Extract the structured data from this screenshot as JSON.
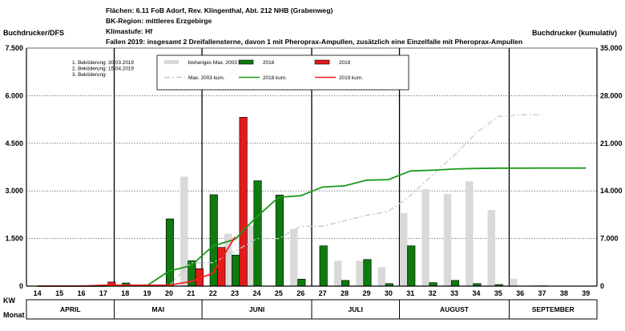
{
  "header": {
    "line1": "Flächen: 6.11 FoB Adorf, Rev. Klingenthal, Abt. 212 NHB (Grabenweg)",
    "line2": "BK-Region: mittleres Erzgebirge",
    "line3": "Klimastufe: Hf",
    "line4": "Fallen 2019: insgesamt 2 Dreifallensterne, davon 1 mit Pheroprax-Ampullen, zusätzlich eine Einzelfalle mit Pheroprax-Ampullen"
  },
  "treatment_notes": [
    {
      "label": "1. Beköderung:",
      "value": "30.03.2019"
    },
    {
      "label": "2. Beköderung:",
      "value": "15.04.2019"
    },
    {
      "label": "3. Beköderung:",
      "value": ""
    }
  ],
  "colors": {
    "max2003": "#d9d9d9",
    "y2018": "#0f7a0f",
    "y2019": "#e31b1b",
    "max2003_line": "#c8c8c8",
    "y2018_line": "#1a9a1a",
    "y2019_line": "#ff1a1a"
  },
  "chart_data": {
    "type": "bar",
    "ylabel_left": "Buchdrucker/DFS",
    "ylabel_right": "Buchdrucker (kumulativ)",
    "ylim_left": [
      0,
      7500
    ],
    "ylim_right": [
      0,
      35000
    ],
    "yticks_left": [
      "0",
      "1.500",
      "3.000",
      "4.500",
      "6.000",
      "7.500"
    ],
    "yticks_right": [
      "0",
      "7.000",
      "14.000",
      "21.000",
      "28.000",
      "35.000"
    ],
    "x_row_label": "KW",
    "month_row_label": "Monat",
    "categories": [
      "14",
      "15",
      "16",
      "17",
      "18",
      "19",
      "20",
      "21",
      "22",
      "23",
      "24",
      "25",
      "26",
      "27",
      "28",
      "29",
      "30",
      "31",
      "32",
      "33",
      "34",
      "35",
      "36",
      "37",
      "38",
      "39"
    ],
    "months": [
      {
        "name": "APRIL",
        "weeks": [
          "14",
          "15",
          "16",
          "17"
        ]
      },
      {
        "name": "MAI",
        "weeks": [
          "18",
          "19",
          "20",
          "21"
        ]
      },
      {
        "name": "JUNI",
        "weeks": [
          "22",
          "23",
          "24",
          "25",
          "26"
        ]
      },
      {
        "name": "JULI",
        "weeks": [
          "27",
          "28",
          "29",
          "30"
        ]
      },
      {
        "name": "AUGUST",
        "weeks": [
          "31",
          "32",
          "33",
          "34",
          "35"
        ]
      },
      {
        "name": "SEPTEMBER",
        "weeks": [
          "36",
          "37",
          "38",
          "39"
        ]
      }
    ],
    "legend": [
      {
        "label": "bisheriges Max. 2003",
        "kind": "bar",
        "series": "max2003"
      },
      {
        "label": "2018",
        "kind": "bar",
        "series": "y2018"
      },
      {
        "label": "2019",
        "kind": "bar",
        "series": "y2019"
      },
      {
        "label": "Max. 2003 kum.",
        "kind": "line",
        "series": "max2003"
      },
      {
        "label": "2018 kum.",
        "kind": "line",
        "series": "y2018"
      },
      {
        "label": "2019 kum.",
        "kind": "line",
        "series": "y2019"
      }
    ],
    "bars": {
      "max2003": [
        0,
        0,
        0,
        0,
        0,
        0,
        0,
        3450,
        0,
        1650,
        1900,
        0,
        1800,
        0,
        800,
        800,
        600,
        2300,
        3050,
        2900,
        3300,
        2400,
        230,
        30,
        0,
        0
      ],
      "y2018": [
        0,
        0,
        0,
        0,
        100,
        0,
        2120,
        800,
        2880,
        980,
        3320,
        2870,
        220,
        1270,
        180,
        840,
        80,
        1270,
        110,
        180,
        80,
        50,
        0,
        10,
        0,
        0
      ],
      "y2019": [
        0,
        0,
        0,
        130,
        0,
        0,
        0,
        550,
        1220,
        5320,
        0,
        0,
        0,
        0,
        0,
        0,
        0,
        0,
        0,
        0,
        0,
        0,
        0,
        0,
        0,
        0
      ]
    },
    "cumulative": {
      "max2003": [
        0,
        0,
        0,
        0,
        0,
        0,
        0,
        3450,
        3450,
        5100,
        7000,
        7000,
        8800,
        8800,
        9600,
        10400,
        11000,
        13300,
        16350,
        19250,
        22550,
        24950,
        25180,
        25210,
        null,
        null
      ],
      "y2018": [
        0,
        0,
        0,
        0,
        100,
        100,
        2220,
        3020,
        5900,
        6880,
        10200,
        13070,
        13290,
        14560,
        14740,
        15580,
        15660,
        16930,
        17040,
        17220,
        17300,
        17350,
        17350,
        17360,
        17360,
        17360
      ],
      "y2019": [
        0,
        0,
        0,
        130,
        130,
        130,
        130,
        680,
        1900,
        7220,
        null,
        null,
        null,
        null,
        null,
        null,
        null,
        null,
        null,
        null,
        null,
        null,
        null,
        null,
        null,
        null
      ]
    }
  }
}
